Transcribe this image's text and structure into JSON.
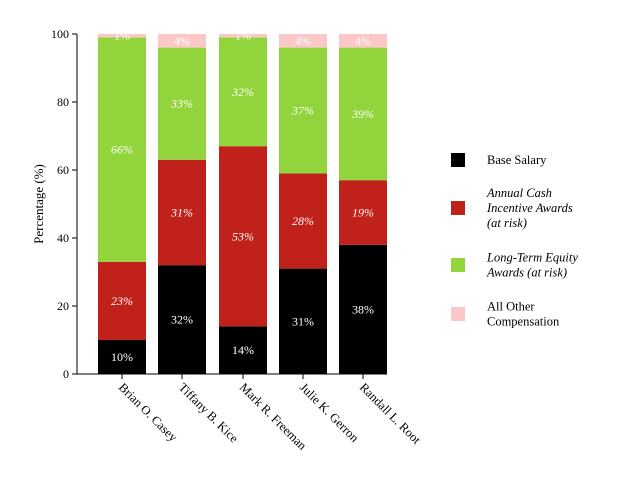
{
  "chart_data": {
    "type": "bar",
    "stacked": true,
    "ylabel": "Percentage (%)",
    "ylim": [
      0,
      100
    ],
    "yticks": [
      0,
      20,
      40,
      60,
      80,
      100
    ],
    "grid": false,
    "legend_position": "right",
    "categories": [
      "Brian O. Casey",
      "Tiffany B. Kice",
      "Mark R. Freeman",
      "Julie K. Gerron",
      "Randall L. Root"
    ],
    "series": [
      {
        "name": "Base Salary",
        "color": "#000000",
        "label_color": "#ffffff",
        "label_italic": false,
        "values": [
          10,
          32,
          14,
          31,
          38
        ],
        "labels": [
          "10%",
          "32%",
          "14%",
          "31%",
          "38%"
        ]
      },
      {
        "name": "Annual Cash Incentive Awards (at risk)",
        "legend_lines": [
          "Annual Cash",
          "Incentive Awards",
          "(at risk)"
        ],
        "color": "#c0211a",
        "label_color": "#ffffff",
        "label_italic": true,
        "values": [
          23,
          31,
          53,
          28,
          19
        ],
        "labels": [
          "23%",
          "31%",
          "53%",
          "28%",
          "19%"
        ]
      },
      {
        "name": "Long-Term Equity Awards (at risk)",
        "legend_lines": [
          "Long-Term Equity",
          "Awards (at risk)"
        ],
        "color": "#92d43b",
        "label_color": "#ffffff",
        "label_italic": true,
        "values": [
          66,
          33,
          32,
          37,
          39
        ],
        "labels": [
          "66%",
          "33%",
          "32%",
          "37%",
          "39%"
        ]
      },
      {
        "name": "All Other Compensation",
        "legend_lines": [
          "All Other",
          "Compensation"
        ],
        "color": "#fbc7c7",
        "label_color": "#ffffff",
        "label_italic": false,
        "values": [
          1,
          4,
          1,
          4,
          4
        ],
        "labels": [
          "1%",
          "4%",
          "1%",
          "4%",
          "4%"
        ]
      }
    ]
  }
}
